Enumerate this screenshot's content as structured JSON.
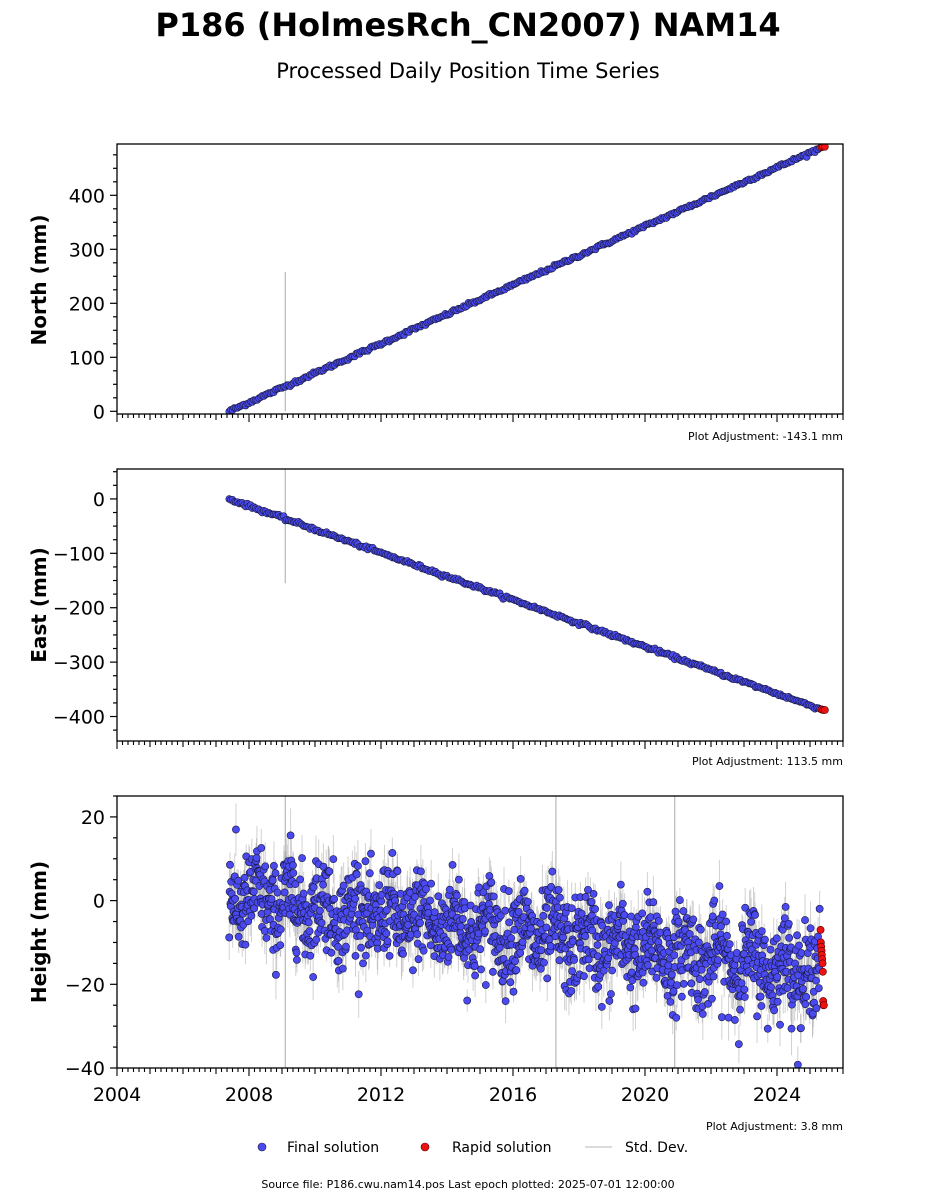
{
  "title": "P186 (HolmesRch_CN2007) NAM14",
  "subtitle": "Processed Daily Position Time Series",
  "source_note": "Source file: P186.cwu.nam14.pos  Last epoch plotted: 2025-07-01 12:00:00",
  "legend": [
    {
      "label": "Final solution",
      "color": "#4a4af0",
      "marker": "circle"
    },
    {
      "label": "Rapid solution",
      "color": "#ee1111",
      "marker": "circle"
    },
    {
      "label": "Std. Dev.",
      "color": "#cfcfcf",
      "marker": "line"
    }
  ],
  "colors": {
    "final": "#4a4af0",
    "final_edge": "#1a1a40",
    "rapid": "#ee1111",
    "stddev": "#bdbdbd"
  },
  "chart_data": [
    {
      "type": "scatter",
      "ylabel": "North (mm)",
      "adjustment": "Plot Adjustment: -143.1 mm",
      "xlim": [
        2004,
        2026
      ],
      "ylim": [
        -5,
        495
      ],
      "yticks": [
        0,
        100,
        200,
        300,
        400
      ],
      "ytick_labels": [
        "0",
        "100",
        "200",
        "300",
        "400"
      ],
      "show_x_labels": false,
      "series": [
        {
          "kind": "final",
          "trend": {
            "x_start": 2007.4,
            "y_start": 0,
            "x_end": 2025.3,
            "y_end": 487
          },
          "scatter_sd": 1.5,
          "step": 0.05
        },
        {
          "kind": "rapid",
          "points": [
            [
              2025.35,
              489
            ],
            [
              2025.4,
              490
            ],
            [
              2025.45,
              490
            ]
          ]
        }
      ],
      "stddev_spikes": [
        {
          "x": 2009.1,
          "y_low": 0,
          "y_high": 258
        }
      ]
    },
    {
      "type": "scatter",
      "ylabel": "East (mm)",
      "adjustment": "Plot Adjustment: 113.5 mm",
      "xlim": [
        2004,
        2026
      ],
      "ylim": [
        -445,
        55
      ],
      "yticks": [
        -400,
        -300,
        -200,
        -100,
        0
      ],
      "ytick_labels": [
        "−400",
        "−300",
        "−200",
        "−100",
        "0"
      ],
      "show_x_labels": false,
      "series": [
        {
          "kind": "final",
          "trend": {
            "x_start": 2007.4,
            "y_start": 0,
            "x_end": 2025.3,
            "y_end": -386
          },
          "scatter_sd": 1.5,
          "step": 0.05
        },
        {
          "kind": "rapid",
          "points": [
            [
              2025.35,
              -387
            ],
            [
              2025.4,
              -388
            ],
            [
              2025.45,
              -388
            ]
          ]
        }
      ],
      "stddev_spikes": [
        {
          "x": 2009.1,
          "y_low": -155,
          "y_high": 55
        }
      ]
    },
    {
      "type": "scatter",
      "ylabel": "Height (mm)",
      "adjustment": "Plot Adjustment: 3.8 mm",
      "xlim": [
        2004,
        2026
      ],
      "ylim": [
        -40,
        25
      ],
      "yticks": [
        -40,
        -20,
        0,
        20
      ],
      "ytick_labels": [
        "−40",
        "−20",
        "0",
        "20"
      ],
      "xticks": [
        2004,
        2008,
        2012,
        2016,
        2020,
        2024
      ],
      "xtick_labels": [
        "2004",
        "2008",
        "2012",
        "2016",
        "2020",
        "2024"
      ],
      "show_x_labels": true,
      "series": [
        {
          "kind": "final",
          "trend": {
            "x_start": 2007.4,
            "y_start": 1,
            "x_end": 2025.3,
            "y_end": -17
          },
          "scatter_sd": 5.5,
          "seasonal_amp": 3,
          "step": 0.012
        },
        {
          "kind": "rapid",
          "points": [
            [
              2025.32,
              -7
            ],
            [
              2025.33,
              -10
            ],
            [
              2025.34,
              -11
            ],
            [
              2025.35,
              -12
            ],
            [
              2025.36,
              -13
            ],
            [
              2025.37,
              -14
            ],
            [
              2025.38,
              -15
            ],
            [
              2025.39,
              -17
            ],
            [
              2025.4,
              -24
            ],
            [
              2025.41,
              -25
            ],
            [
              2025.42,
              -25
            ]
          ]
        }
      ],
      "stddev_spikes": [
        {
          "x": 2009.1,
          "y_low": -40,
          "y_high": 25
        },
        {
          "x": 2017.3,
          "y_low": -40,
          "y_high": 25
        },
        {
          "x": 2020.9,
          "y_low": -40,
          "y_high": 25
        }
      ]
    }
  ]
}
